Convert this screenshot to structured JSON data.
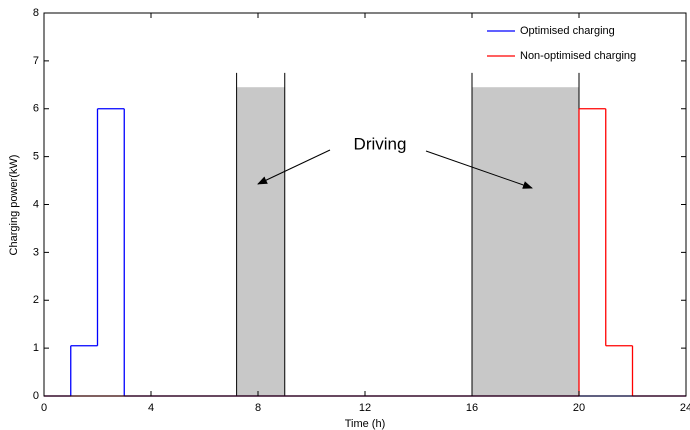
{
  "chart_data": {
    "type": "step",
    "xlabel": "Time (h)",
    "ylabel": "Charging power(kW)",
    "xlim": [
      0,
      24
    ],
    "xticks": [
      0,
      4,
      8,
      12,
      16,
      20,
      24
    ],
    "ylim": [
      0,
      8
    ],
    "yticks": [
      0,
      1,
      2,
      3,
      4,
      5,
      6,
      7,
      8
    ],
    "legend": "upper right",
    "series": [
      {
        "name": "Optimised charging",
        "color": "#0000ff",
        "x": [
          0,
          1,
          2,
          3,
          24
        ],
        "values": [
          0,
          1.05,
          6,
          0,
          0
        ]
      },
      {
        "name": "Non-optimised charging",
        "color": "#ff0000",
        "x": [
          0,
          20,
          21,
          22,
          24
        ],
        "values": [
          0,
          6,
          1.05,
          0,
          0
        ]
      }
    ],
    "shaded_regions": [
      {
        "x": [
          7.2,
          9
        ],
        "height": 6.45,
        "edge_height": 6.75,
        "color": "#c8c8c8"
      },
      {
        "x": [
          16,
          20
        ],
        "height": 6.45,
        "edge_height": 6.75,
        "color": "#c8c8c8"
      }
    ],
    "annotation": "Driving"
  }
}
